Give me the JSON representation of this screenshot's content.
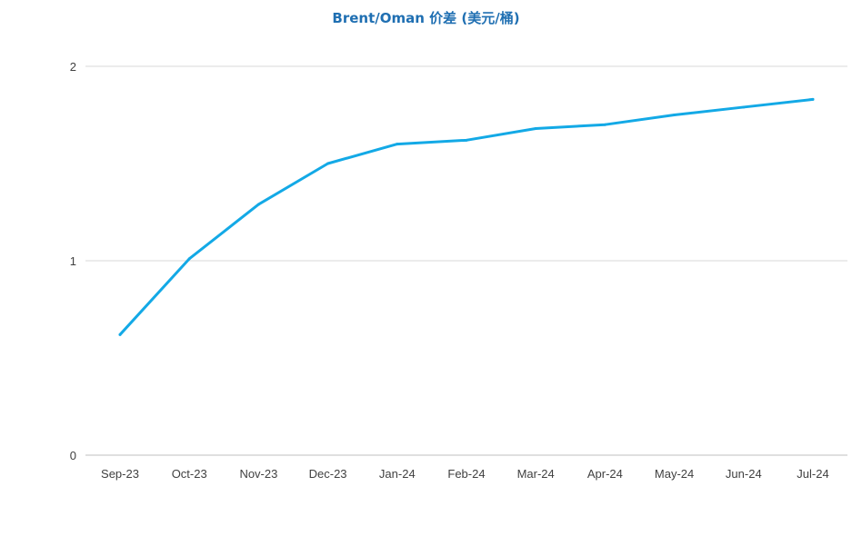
{
  "chart_data": {
    "type": "line",
    "title": "Brent/Oman 价差 (美元/桶)",
    "xlabel": "",
    "ylabel": "",
    "categories": [
      "Sep-23",
      "Oct-23",
      "Nov-23",
      "Dec-23",
      "Jan-24",
      "Feb-24",
      "Mar-24",
      "Apr-24",
      "May-24",
      "Jun-24",
      "Jul-24"
    ],
    "series": [
      {
        "values": [
          0.62,
          1.01,
          1.29,
          1.5,
          1.6,
          1.62,
          1.68,
          1.7,
          1.75,
          1.79,
          1.83
        ]
      }
    ],
    "ylim": [
      0,
      2
    ],
    "yticks": [
      0,
      1,
      2
    ],
    "grid": true,
    "legend": "none",
    "colors": {
      "line": "#13a9e6",
      "title": "#1f6fb2",
      "grid": "#d9d9d9",
      "axis": "#bfbfbf",
      "tick_text": "#404040"
    }
  }
}
